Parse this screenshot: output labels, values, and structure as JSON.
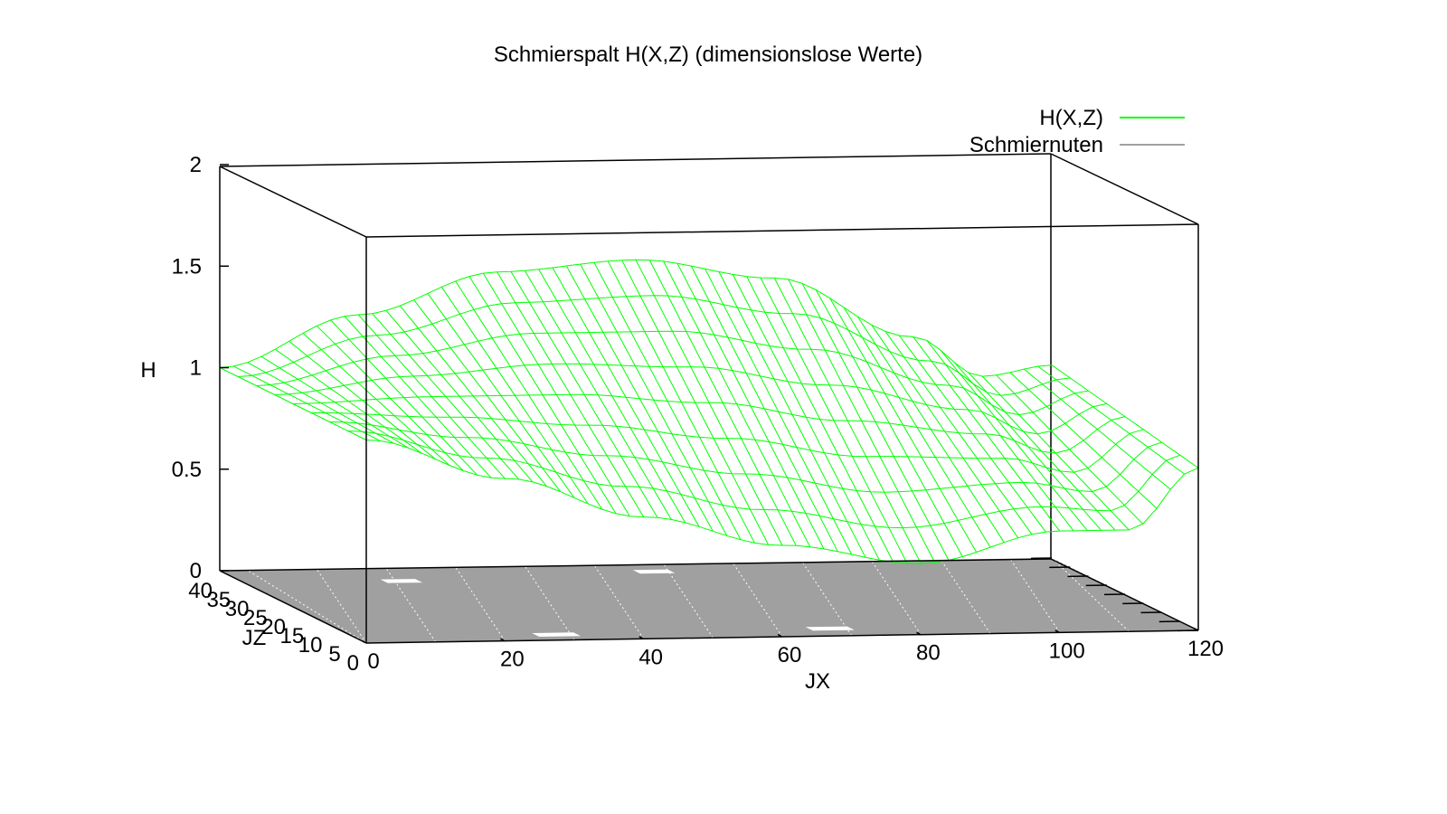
{
  "chart_data": {
    "type": "surface3d",
    "title": "Schmierspalt H(X,Z) (dimensionslose Werte)",
    "xlabel": "JX",
    "ylabel": "JZ",
    "zlabel": "H",
    "xlim": [
      0,
      120
    ],
    "ylim": [
      0,
      40
    ],
    "zlim": [
      0,
      2
    ],
    "xticks": [
      "0",
      "20",
      "40",
      "60",
      "80",
      "100",
      "120"
    ],
    "yticks": [
      "0",
      "5",
      "10",
      "15",
      "20",
      "25",
      "30",
      "35",
      "40"
    ],
    "zticks": [
      "0",
      "0.5",
      "1",
      "1.5",
      "2"
    ],
    "legend_position": "top-right",
    "grid": false,
    "series": [
      {
        "name": "H(X,Z)",
        "color": "#00ff00",
        "style": "wireframe",
        "sample_values": {
          "jx": [
            0,
            20,
            40,
            60,
            80,
            100,
            110,
            120
          ],
          "h_at_jz_0": [
            1.0,
            0.8,
            0.6,
            0.45,
            0.35,
            0.5,
            0.5,
            0.8
          ],
          "h_at_jz_40": [
            1.0,
            1.25,
            1.45,
            1.5,
            1.4,
            1.1,
            0.9,
            0.95
          ]
        }
      },
      {
        "name": "Schmiernuten",
        "color": "#a0a0a0",
        "style": "base-plane",
        "grooves": [
          {
            "jx_from": 26,
            "jx_to": 32,
            "jz": 3
          },
          {
            "jx_from": 20,
            "jx_to": 25,
            "jz": 33
          },
          {
            "jx_from": 66,
            "jx_to": 72,
            "jz": 4
          },
          {
            "jx_from": 58,
            "jx_to": 63,
            "jz": 36
          }
        ]
      }
    ]
  }
}
